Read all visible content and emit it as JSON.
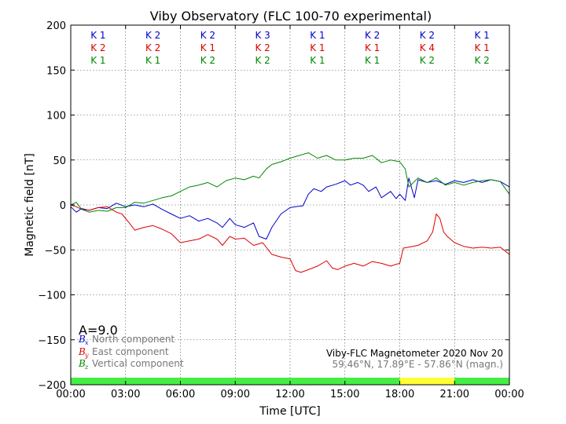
{
  "chart_data": {
    "type": "line",
    "title": "Viby Observatory (FLC 100-70 experimental)",
    "xlabel": "Time [UTC]",
    "ylabel": "Magnetic field [nT]",
    "x_unit": "hours UTC",
    "xlim": [
      0,
      24
    ],
    "ylim": [
      -200,
      200
    ],
    "xtick_values": [
      0,
      3,
      6,
      9,
      12,
      15,
      18,
      21,
      24
    ],
    "xtick_labels": [
      "00:00",
      "03:00",
      "06:00",
      "09:00",
      "12:00",
      "15:00",
      "18:00",
      "21:00",
      "00:00"
    ],
    "ytick_values": [
      200,
      150,
      100,
      50,
      0,
      -50,
      -100,
      -150,
      -200
    ],
    "ytick_labels": [
      "200",
      "150",
      "100",
      "50",
      "0",
      "−50",
      "−100",
      "−150",
      "−200"
    ],
    "grid": true,
    "legend_location": "lower-left",
    "k_indices": {
      "rows": [
        {
          "color": "#0000cc",
          "labels": [
            "K 1",
            "K 2",
            "K 2",
            "K 3",
            "K 1",
            "K 2",
            "K 2",
            "K 1"
          ]
        },
        {
          "color": "#dd0000",
          "labels": [
            "K 2",
            "K 2",
            "K 1",
            "K 2",
            "K 1",
            "K 1",
            "K 4",
            "K 1"
          ]
        },
        {
          "color": "#008800",
          "labels": [
            "K 1",
            "K 1",
            "K 2",
            "K 2",
            "K 1",
            "K 1",
            "K 2",
            "K 2"
          ]
        }
      ]
    },
    "activity_bar": [
      {
        "from": 0,
        "to": 18,
        "color": "#44ee44"
      },
      {
        "from": 18,
        "to": 21,
        "color": "#ffff33"
      },
      {
        "from": 21,
        "to": 24,
        "color": "#44ee44"
      }
    ],
    "a_index_label": "A=9.0",
    "legend": [
      {
        "symbol": "B",
        "subscript": "x",
        "text": "North component",
        "color": "#0000cc"
      },
      {
        "symbol": "B",
        "subscript": "y",
        "text": "East component",
        "color": "#dd0000"
      },
      {
        "symbol": "B",
        "subscript": "z",
        "text": "Vertical component",
        "color": "#008800"
      }
    ],
    "info_line_1": "Viby-FLC Magnetometer 2020 Nov 20",
    "info_line_2": "59.46°N, 17.89°E - 57.86°N (magn.)",
    "series": [
      {
        "name": "North component",
        "color": "#0000cc",
        "x": [
          0,
          0.3,
          0.6,
          1,
          1.5,
          2,
          2.5,
          3,
          3.5,
          4,
          4.5,
          5,
          5.5,
          6,
          6.5,
          7,
          7.5,
          8,
          8.3,
          8.7,
          9,
          9.5,
          10,
          10.3,
          10.7,
          11,
          11.5,
          12,
          12.3,
          12.7,
          13,
          13.3,
          13.7,
          14,
          14.5,
          15,
          15.3,
          15.7,
          16,
          16.3,
          16.7,
          17,
          17.5,
          17.8,
          18,
          18.3,
          18.5,
          18.8,
          19,
          19.5,
          20,
          20.5,
          21,
          21.5,
          22,
          22.5,
          23,
          23.5,
          24
        ],
        "y": [
          -2,
          -8,
          -4,
          -6,
          -3,
          -4,
          2,
          -2,
          0,
          -2,
          1,
          -5,
          -10,
          -15,
          -12,
          -18,
          -15,
          -20,
          -25,
          -15,
          -22,
          -25,
          -20,
          -35,
          -38,
          -25,
          -10,
          -3,
          -2,
          -1,
          12,
          18,
          15,
          20,
          23,
          27,
          22,
          25,
          22,
          15,
          20,
          8,
          15,
          7,
          12,
          5,
          30,
          8,
          28,
          25,
          27,
          23,
          27,
          25,
          28,
          25,
          28,
          26,
          20
        ]
      },
      {
        "name": "East component",
        "color": "#dd0000",
        "x": [
          0,
          0.3,
          0.6,
          1,
          1.5,
          2,
          2.5,
          2.8,
          3.2,
          3.5,
          4,
          4.5,
          5,
          5.5,
          6,
          6.5,
          7,
          7.5,
          8,
          8.3,
          8.7,
          9,
          9.5,
          10,
          10.5,
          11,
          11.5,
          12,
          12.3,
          12.6,
          13,
          13.5,
          14,
          14.3,
          14.6,
          15,
          15.5,
          16,
          16.5,
          17,
          17.5,
          17.8,
          18,
          18.2,
          18.5,
          19,
          19.5,
          19.8,
          20,
          20.2,
          20.4,
          20.6,
          21,
          21.5,
          22,
          22.5,
          23,
          23.5,
          24
        ],
        "y": [
          0,
          -2,
          -5,
          -6,
          -3,
          -2,
          -8,
          -10,
          -20,
          -28,
          -25,
          -23,
          -27,
          -32,
          -42,
          -40,
          -38,
          -33,
          -38,
          -45,
          -35,
          -38,
          -37,
          -45,
          -42,
          -55,
          -58,
          -60,
          -73,
          -75,
          -72,
          -68,
          -62,
          -70,
          -72,
          -68,
          -65,
          -68,
          -63,
          -65,
          -68,
          -66,
          -65,
          -48,
          -47,
          -45,
          -40,
          -30,
          -10,
          -15,
          -30,
          -35,
          -42,
          -46,
          -48,
          -47,
          -48,
          -47,
          -55
        ]
      },
      {
        "name": "Vertical component",
        "color": "#008800",
        "x": [
          0,
          0.3,
          0.6,
          1,
          1.5,
          2,
          2.5,
          3,
          3.5,
          4,
          4.5,
          5,
          5.5,
          6,
          6.5,
          7,
          7.5,
          8,
          8.5,
          9,
          9.5,
          10,
          10.3,
          10.7,
          11,
          11.5,
          12,
          12.5,
          13,
          13.5,
          14,
          14.5,
          15,
          15.5,
          16,
          16.5,
          17,
          17.5,
          18,
          18.3,
          18.5,
          19,
          19.5,
          20,
          20.5,
          21,
          21.5,
          22,
          22.5,
          23,
          23.5,
          24
        ],
        "y": [
          0,
          3,
          -5,
          -8,
          -6,
          -7,
          -3,
          -3,
          3,
          2,
          5,
          8,
          10,
          15,
          20,
          22,
          25,
          20,
          27,
          30,
          28,
          32,
          30,
          40,
          45,
          48,
          52,
          55,
          58,
          52,
          55,
          50,
          50,
          52,
          52,
          55,
          47,
          50,
          48,
          40,
          20,
          30,
          25,
          30,
          22,
          25,
          22,
          25,
          27,
          28,
          26,
          12
        ]
      }
    ]
  }
}
